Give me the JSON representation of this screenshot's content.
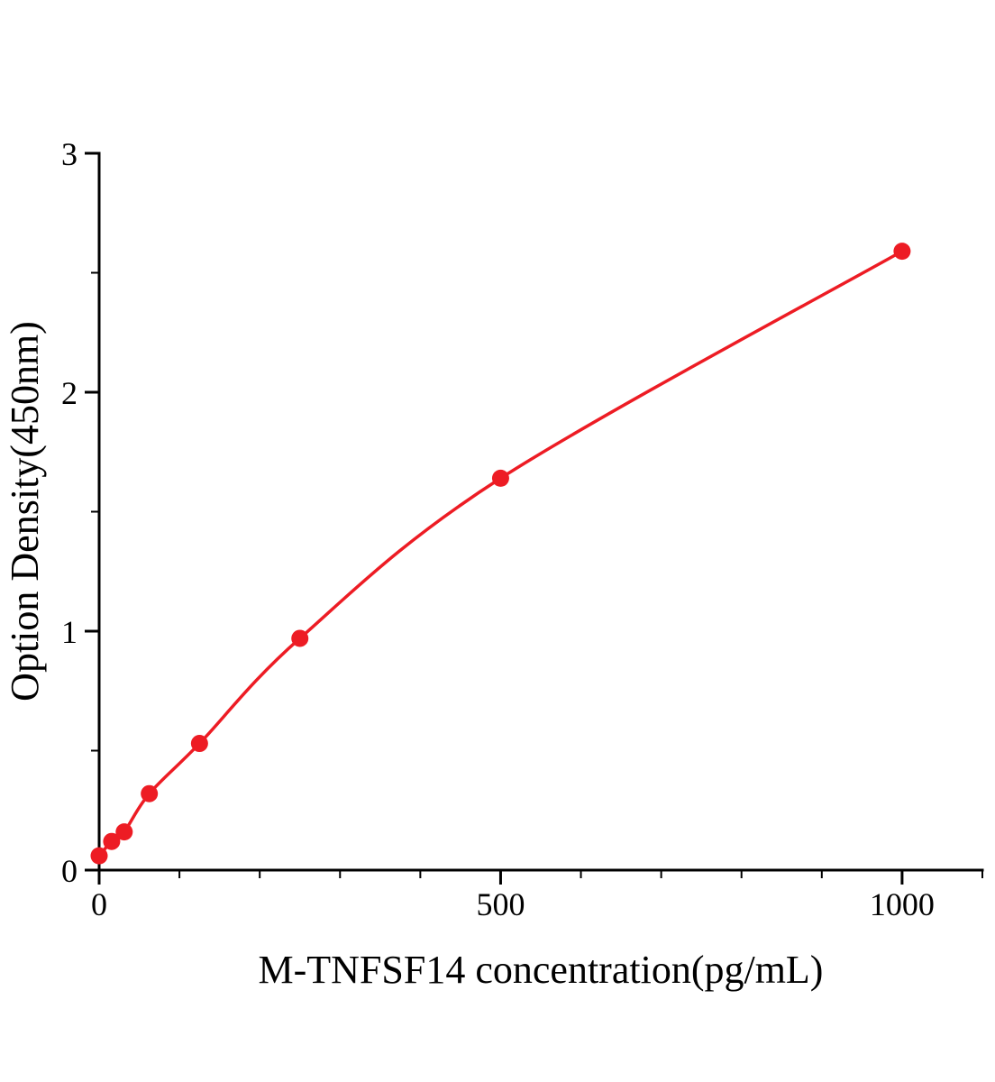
{
  "chart_data": {
    "type": "scatter",
    "title": "",
    "xlabel": "M-TNFSF14 concentration(pg/mL)",
    "ylabel": "Option Density(450nm)",
    "x": [
      0,
      15.6,
      31.2,
      62.5,
      125,
      250,
      500,
      1000
    ],
    "y": [
      0.06,
      0.12,
      0.16,
      0.32,
      0.53,
      0.97,
      1.64,
      2.59
    ],
    "xlim": [
      0,
      1100
    ],
    "ylim": [
      0,
      3
    ],
    "x_major_ticks": [
      0,
      500,
      1000
    ],
    "x_tick_labels": [
      "0",
      "500",
      "1000"
    ],
    "x_minor_step": 100,
    "y_major_ticks": [
      0,
      1,
      2,
      3
    ],
    "y_tick_labels": [
      "0",
      "1",
      "2",
      "3"
    ],
    "y_minor_step": 0.5,
    "grid": false,
    "legend_position": "none",
    "line_color": "#ed1c24",
    "marker_color": "#ed1c24",
    "axis_color": "#000000",
    "background_color": "#ffffff"
  }
}
